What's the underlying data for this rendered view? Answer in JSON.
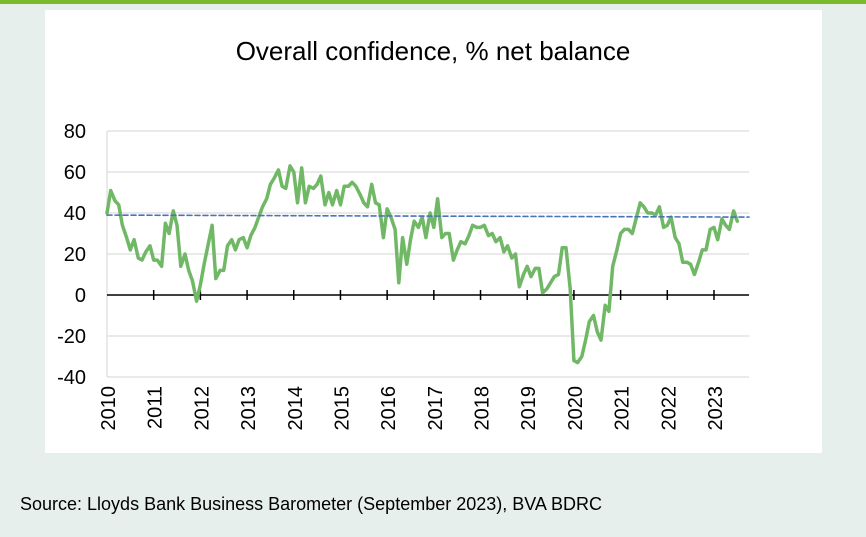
{
  "header": {
    "accent_color": "#7ab929"
  },
  "source_note": "Source: Lloyds Bank Business Barometer (September 2023), BVA BDRC",
  "chart_data": {
    "type": "line",
    "title": "Overall confidence, % net balance",
    "ylim": [
      -40,
      80
    ],
    "yticks": [
      -40,
      -20,
      0,
      20,
      40,
      60,
      80
    ],
    "ytick_labels": [
      "-40",
      "-20",
      "0",
      "20",
      "40",
      "60",
      "80"
    ],
    "xlim": [
      2010,
      2023.75
    ],
    "xtick_labels": [
      "2010",
      "2011",
      "2012",
      "2013",
      "2014",
      "2015",
      "2016",
      "2017",
      "2018",
      "2019",
      "2020",
      "2021",
      "2022",
      "2023"
    ],
    "grid": "horizontal",
    "series": [
      {
        "color": "#70b865",
        "style": "solid",
        "points": [
          [
            2010.0,
            40
          ],
          [
            2010.08,
            51
          ],
          [
            2010.17,
            46
          ],
          [
            2010.25,
            44
          ],
          [
            2010.33,
            34
          ],
          [
            2010.42,
            28
          ],
          [
            2010.5,
            22
          ],
          [
            2010.58,
            27
          ],
          [
            2010.67,
            18
          ],
          [
            2010.75,
            17
          ],
          [
            2010.83,
            21
          ],
          [
            2010.92,
            24
          ],
          [
            2011.0,
            17
          ],
          [
            2011.08,
            17
          ],
          [
            2011.17,
            14
          ],
          [
            2011.25,
            35
          ],
          [
            2011.33,
            30
          ],
          [
            2011.42,
            41
          ],
          [
            2011.5,
            34
          ],
          [
            2011.58,
            14
          ],
          [
            2011.67,
            20
          ],
          [
            2011.75,
            12
          ],
          [
            2011.83,
            7
          ],
          [
            2011.92,
            -3
          ],
          [
            2012.0,
            5
          ],
          [
            2012.08,
            15
          ],
          [
            2012.17,
            25
          ],
          [
            2012.25,
            34
          ],
          [
            2012.33,
            8
          ],
          [
            2012.42,
            12
          ],
          [
            2012.5,
            12
          ],
          [
            2012.58,
            24
          ],
          [
            2012.67,
            27
          ],
          [
            2012.75,
            22
          ],
          [
            2012.83,
            27
          ],
          [
            2012.92,
            28
          ],
          [
            2013.0,
            23
          ],
          [
            2013.08,
            29
          ],
          [
            2013.17,
            33
          ],
          [
            2013.25,
            38
          ],
          [
            2013.33,
            43
          ],
          [
            2013.42,
            47
          ],
          [
            2013.5,
            54
          ],
          [
            2013.58,
            57
          ],
          [
            2013.67,
            61
          ],
          [
            2013.75,
            53
          ],
          [
            2013.83,
            52
          ],
          [
            2013.92,
            63
          ],
          [
            2014.0,
            60
          ],
          [
            2014.08,
            45
          ],
          [
            2014.17,
            62
          ],
          [
            2014.25,
            45
          ],
          [
            2014.33,
            53
          ],
          [
            2014.42,
            52
          ],
          [
            2014.5,
            54
          ],
          [
            2014.58,
            58
          ],
          [
            2014.67,
            44
          ],
          [
            2014.75,
            50
          ],
          [
            2014.83,
            44
          ],
          [
            2014.92,
            51
          ],
          [
            2015.0,
            44
          ],
          [
            2015.08,
            53
          ],
          [
            2015.17,
            53
          ],
          [
            2015.25,
            55
          ],
          [
            2015.33,
            53
          ],
          [
            2015.42,
            49
          ],
          [
            2015.5,
            45
          ],
          [
            2015.58,
            43
          ],
          [
            2015.67,
            54
          ],
          [
            2015.75,
            45
          ],
          [
            2015.83,
            44
          ],
          [
            2015.92,
            28
          ],
          [
            2016.0,
            42
          ],
          [
            2016.08,
            38
          ],
          [
            2016.17,
            32
          ],
          [
            2016.25,
            6
          ],
          [
            2016.33,
            28
          ],
          [
            2016.42,
            15
          ],
          [
            2016.5,
            27
          ],
          [
            2016.58,
            36
          ],
          [
            2016.67,
            33
          ],
          [
            2016.75,
            38
          ],
          [
            2016.83,
            28
          ],
          [
            2016.92,
            40
          ],
          [
            2017.0,
            33
          ],
          [
            2017.08,
            47
          ],
          [
            2017.17,
            28
          ],
          [
            2017.25,
            30
          ],
          [
            2017.33,
            30
          ],
          [
            2017.42,
            17
          ],
          [
            2017.5,
            22
          ],
          [
            2017.58,
            26
          ],
          [
            2017.67,
            25
          ],
          [
            2017.75,
            29
          ],
          [
            2017.83,
            34
          ],
          [
            2017.92,
            33
          ],
          [
            2018.0,
            33
          ],
          [
            2018.08,
            34
          ],
          [
            2018.17,
            29
          ],
          [
            2018.25,
            30
          ],
          [
            2018.33,
            26
          ],
          [
            2018.42,
            28
          ],
          [
            2018.5,
            21
          ],
          [
            2018.58,
            24
          ],
          [
            2018.67,
            18
          ],
          [
            2018.75,
            20
          ],
          [
            2018.83,
            4
          ],
          [
            2018.92,
            10
          ],
          [
            2019.0,
            14
          ],
          [
            2019.08,
            9
          ],
          [
            2019.17,
            13
          ],
          [
            2019.25,
            13
          ],
          [
            2019.33,
            1
          ],
          [
            2019.42,
            3
          ],
          [
            2019.5,
            6
          ],
          [
            2019.58,
            9
          ],
          [
            2019.67,
            10
          ],
          [
            2019.75,
            23
          ],
          [
            2019.83,
            23
          ],
          [
            2019.92,
            3
          ],
          [
            2020.0,
            -32
          ],
          [
            2020.08,
            -33
          ],
          [
            2020.17,
            -30
          ],
          [
            2020.25,
            -22
          ],
          [
            2020.33,
            -13
          ],
          [
            2020.42,
            -10
          ],
          [
            2020.5,
            -18
          ],
          [
            2020.58,
            -22
          ],
          [
            2020.67,
            -5
          ],
          [
            2020.75,
            -8
          ],
          [
            2020.83,
            14
          ],
          [
            2020.92,
            22
          ],
          [
            2021.0,
            30
          ],
          [
            2021.08,
            32
          ],
          [
            2021.17,
            32
          ],
          [
            2021.25,
            30
          ],
          [
            2021.33,
            37
          ],
          [
            2021.42,
            45
          ],
          [
            2021.5,
            43
          ],
          [
            2021.58,
            40
          ],
          [
            2021.67,
            40
          ],
          [
            2021.75,
            39
          ],
          [
            2021.83,
            43
          ],
          [
            2021.92,
            33
          ],
          [
            2022.0,
            34
          ],
          [
            2022.08,
            38
          ],
          [
            2022.17,
            28
          ],
          [
            2022.25,
            25
          ],
          [
            2022.33,
            16
          ],
          [
            2022.42,
            16
          ],
          [
            2022.5,
            15
          ],
          [
            2022.58,
            10
          ],
          [
            2022.67,
            16
          ],
          [
            2022.75,
            22
          ],
          [
            2022.83,
            22
          ],
          [
            2022.92,
            32
          ],
          [
            2023.0,
            33
          ],
          [
            2023.08,
            27
          ],
          [
            2023.17,
            37
          ],
          [
            2023.25,
            34
          ],
          [
            2023.33,
            32
          ],
          [
            2023.42,
            41
          ],
          [
            2023.5,
            36
          ]
        ]
      },
      {
        "color": "#4a74b8",
        "style": "dashed",
        "points": [
          [
            2010.0,
            39
          ],
          [
            2023.75,
            38
          ]
        ]
      }
    ]
  }
}
